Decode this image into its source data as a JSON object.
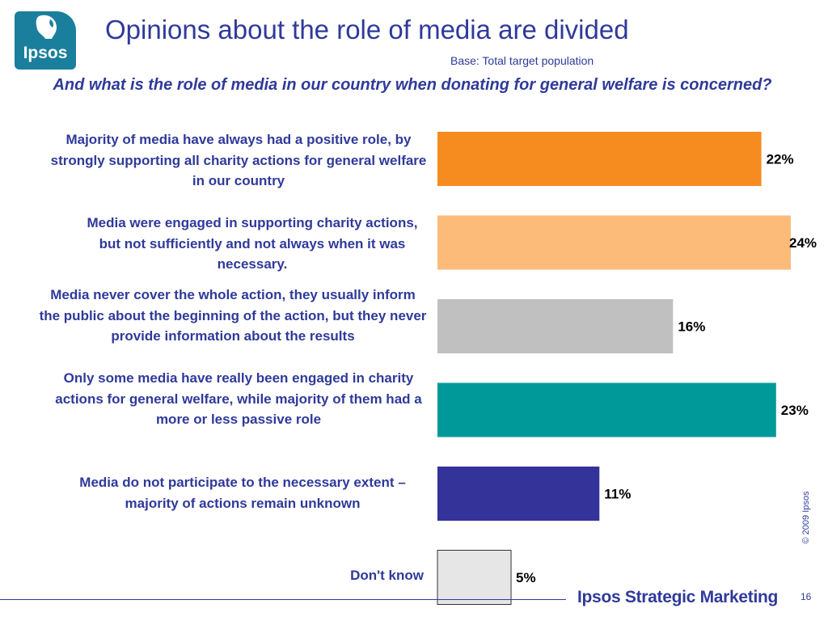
{
  "logo": {
    "text": "Ipsos"
  },
  "slide": {
    "title": "Opinions about the role of media are divided",
    "base": "Base: Total target population",
    "question": "And what is the role of media in our country when donating for general welfare is concerned?",
    "copyright": "© 2009 Ipsos",
    "brand": "Ipsos Strategic Marketing",
    "page_number": "16"
  },
  "chart_data": {
    "type": "bar",
    "orientation": "horizontal",
    "categories": [
      "Majority of media have always had a positive role, by strongly supporting all charity actions for general welfare in our country",
      "Media were engaged in supporting charity actions, but not sufficiently and not always when it was necessary.",
      "Media never cover the whole action, they usually inform the public about the beginning of the action, but they never provide information about the results",
      "Only some media have really been engaged in charity actions for general welfare, while majority of them had a more or less passive role",
      "Media do not participate to the necessary extent – majority of actions remain unknown",
      "Don't know"
    ],
    "values": [
      22,
      24,
      16,
      23,
      11,
      5
    ],
    "value_labels": [
      "22%",
      "24%",
      "16%",
      "23%",
      "11%",
      "5%"
    ],
    "colors": [
      "#f68b1f",
      "#fdbb7a",
      "#c0c0c0",
      "#00999a",
      "#333399",
      "#e6e6e6"
    ],
    "unit": "%",
    "xlim": [
      0,
      24
    ],
    "grid": false,
    "legend": "none"
  }
}
